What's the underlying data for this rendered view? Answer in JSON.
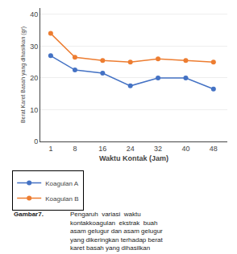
{
  "chart_data": {
    "type": "line",
    "x": [
      1,
      8,
      16,
      24,
      32,
      40,
      48
    ],
    "series": [
      {
        "name": "Koagulan A",
        "color": "#4472c4",
        "marker": "circle",
        "values": [
          27,
          22.5,
          21.5,
          17.5,
          20,
          20,
          16.5
        ]
      },
      {
        "name": "Koagulan B",
        "color": "#ed7d31",
        "marker": "circle",
        "values": [
          34,
          26.5,
          25.5,
          25,
          26,
          25.5,
          25
        ]
      }
    ],
    "xlabel": "Waktu Kontak (Jam)",
    "ylabel": "Berat Karet Basah yang dihasilkan (gr)",
    "xlim": [
      -2,
      52
    ],
    "xticks": [
      1,
      8,
      16,
      24,
      32,
      40,
      48
    ],
    "ylim": [
      0,
      42
    ],
    "yticks": [
      0,
      10,
      20,
      30,
      40
    ],
    "grid": "y",
    "legend": "bottom",
    "annotations": [
      "Gambar7.",
      "Pengaruh  variasi  waktu",
      "kontakkoagulan  ekstrak  buah",
      "asam gelugur dan asam gelugur",
      "yang dikeringkan terhadap berat",
      "karet basah yang dihasilkan"
    ]
  }
}
